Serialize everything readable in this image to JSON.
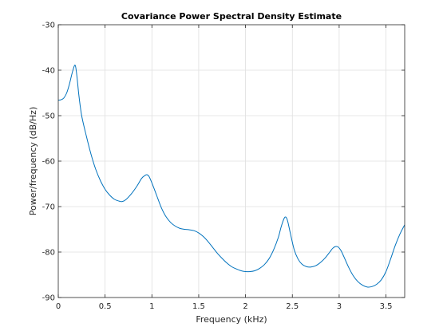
{
  "chart_data": {
    "type": "line",
    "title": "Covariance Power Spectral Density Estimate",
    "xlabel": "Frequency (kHz)",
    "ylabel": "Power/frequency (dB/Hz)",
    "xlim": [
      0,
      3.7
    ],
    "ylim": [
      -90,
      -30
    ],
    "xticks": [
      0,
      0.5,
      1,
      1.5,
      2,
      2.5,
      3,
      3.5
    ],
    "xtick_labels": [
      "0",
      "0.5",
      "1",
      "1.5",
      "2",
      "2.5",
      "3",
      "3.5"
    ],
    "yticks": [
      -90,
      -80,
      -70,
      -60,
      -50,
      -40,
      -30
    ],
    "ytick_labels": [
      "-90",
      "-80",
      "-70",
      "-60",
      "-50",
      "-40",
      "-30"
    ],
    "grid": true,
    "line_color": "#0072BD",
    "x": [
      0.0,
      0.03,
      0.06,
      0.09,
      0.12,
      0.15,
      0.18,
      0.2,
      0.22,
      0.25,
      0.3,
      0.35,
      0.4,
      0.45,
      0.5,
      0.55,
      0.6,
      0.65,
      0.68,
      0.72,
      0.78,
      0.84,
      0.89,
      0.93,
      0.95,
      0.97,
      1.0,
      1.05,
      1.1,
      1.15,
      1.2,
      1.25,
      1.3,
      1.35,
      1.4,
      1.45,
      1.5,
      1.55,
      1.6,
      1.65,
      1.7,
      1.75,
      1.8,
      1.85,
      1.9,
      1.95,
      2.0,
      2.05,
      2.1,
      2.15,
      2.2,
      2.25,
      2.3,
      2.35,
      2.38,
      2.41,
      2.43,
      2.45,
      2.48,
      2.52,
      2.56,
      2.6,
      2.65,
      2.7,
      2.75,
      2.8,
      2.85,
      2.9,
      2.93,
      2.96,
      2.99,
      3.02,
      3.05,
      3.1,
      3.15,
      3.2,
      3.25,
      3.3,
      3.35,
      3.4,
      3.45,
      3.5,
      3.55,
      3.6,
      3.65,
      3.7
    ],
    "y": [
      -46.6,
      -46.5,
      -46.1,
      -45.0,
      -43.0,
      -40.5,
      -38.9,
      -41.5,
      -45.5,
      -50.0,
      -54.5,
      -58.5,
      -61.8,
      -64.3,
      -66.2,
      -67.5,
      -68.4,
      -68.8,
      -68.9,
      -68.5,
      -67.2,
      -65.5,
      -63.8,
      -63.1,
      -63.0,
      -63.4,
      -64.8,
      -67.5,
      -70.2,
      -72.2,
      -73.5,
      -74.3,
      -74.8,
      -75.0,
      -75.1,
      -75.3,
      -75.8,
      -76.6,
      -77.7,
      -79.0,
      -80.3,
      -81.4,
      -82.4,
      -83.2,
      -83.7,
      -84.1,
      -84.3,
      -84.3,
      -84.1,
      -83.6,
      -82.8,
      -81.5,
      -79.5,
      -76.8,
      -74.5,
      -72.7,
      -72.3,
      -73.2,
      -76.0,
      -79.5,
      -81.5,
      -82.6,
      -83.2,
      -83.3,
      -83.0,
      -82.3,
      -81.3,
      -80.0,
      -79.2,
      -78.8,
      -78.9,
      -79.7,
      -81.0,
      -83.3,
      -85.2,
      -86.5,
      -87.3,
      -87.7,
      -87.6,
      -87.1,
      -86.1,
      -84.3,
      -81.5,
      -78.5,
      -76.0,
      -74.0
    ]
  }
}
